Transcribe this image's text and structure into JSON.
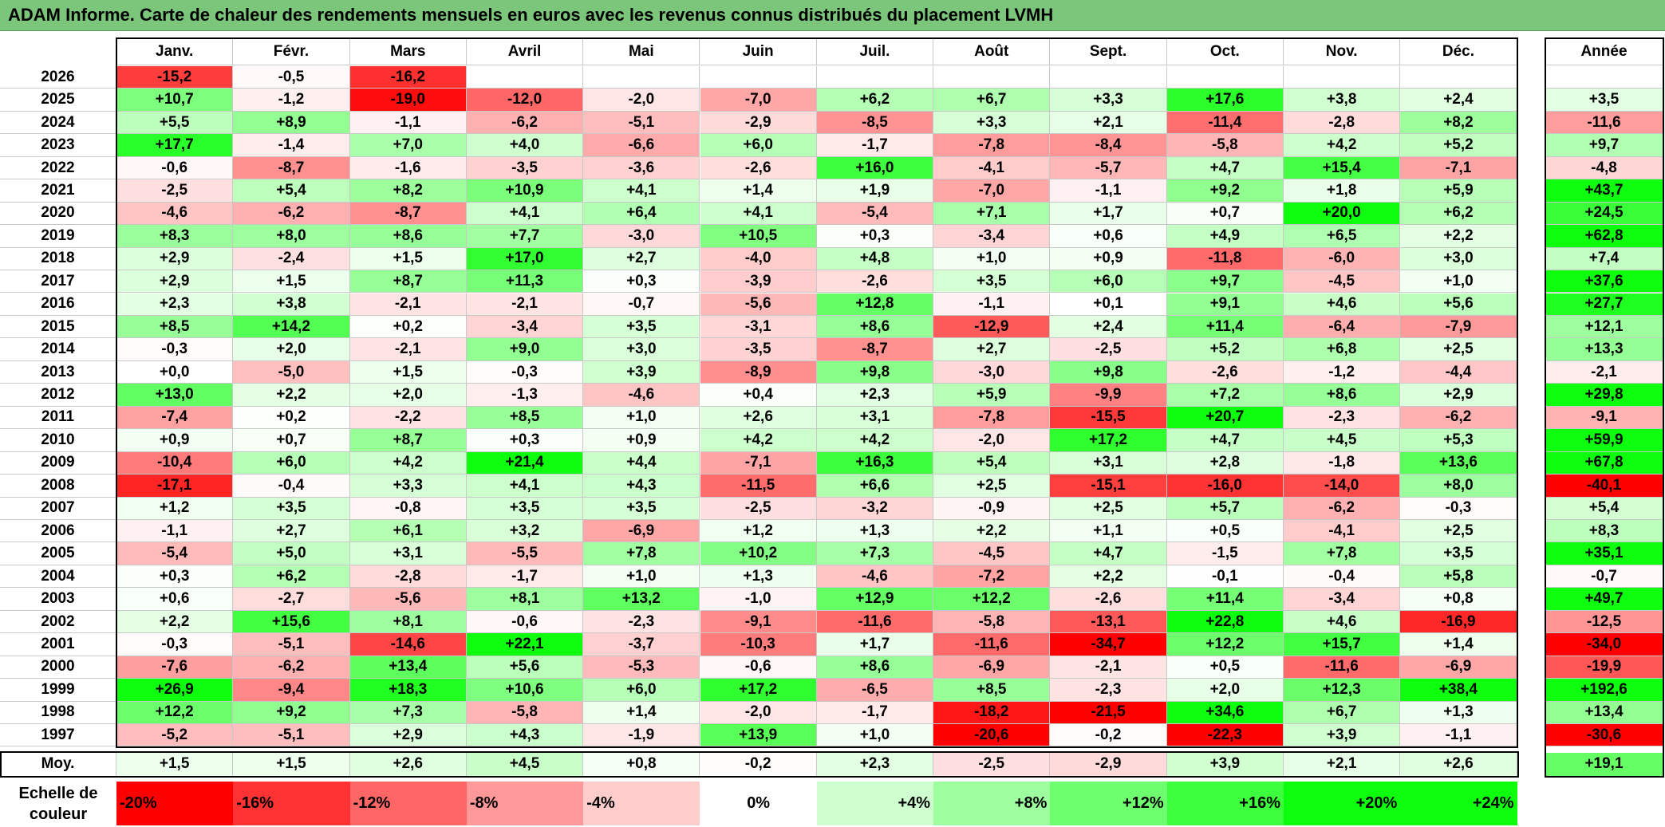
{
  "title": "ADAM Informe. Carte de chaleur des rendements mensuels en euros avec les revenus connus distribués du placement LVMH",
  "chart_data": {
    "type": "heatmap",
    "months": [
      "Janv.",
      "Févr.",
      "Mars",
      "Avril",
      "Mai",
      "Juin",
      "Juil.",
      "Août",
      "Sept.",
      "Oct.",
      "Nov.",
      "Déc."
    ],
    "annual_header": "Année",
    "rows": [
      {
        "year": "2026",
        "values": [
          "-15,2",
          "-0,5",
          "-16,2",
          "",
          "",
          "",
          "",
          "",
          "",
          "",
          "",
          ""
        ],
        "annual": ""
      },
      {
        "year": "2025",
        "values": [
          "+10,7",
          "-1,2",
          "-19,0",
          "-12,0",
          "-2,0",
          "-7,0",
          "+6,2",
          "+6,7",
          "+3,3",
          "+17,6",
          "+3,8",
          "+2,4"
        ],
        "annual": "+3,5"
      },
      {
        "year": "2024",
        "values": [
          "+5,5",
          "+8,9",
          "-1,1",
          "-6,2",
          "-5,1",
          "-2,9",
          "-8,5",
          "+3,3",
          "+2,1",
          "-11,4",
          "-2,8",
          "+8,2"
        ],
        "annual": "-11,6"
      },
      {
        "year": "2023",
        "values": [
          "+17,7",
          "-1,4",
          "+7,0",
          "+4,0",
          "-6,6",
          "+6,0",
          "-1,7",
          "-7,8",
          "-8,4",
          "-5,8",
          "+4,2",
          "+5,2"
        ],
        "annual": "+9,7"
      },
      {
        "year": "2022",
        "values": [
          "-0,6",
          "-8,7",
          "-1,6",
          "-3,5",
          "-3,6",
          "-2,6",
          "+16,0",
          "-4,1",
          "-5,7",
          "+4,7",
          "+15,4",
          "-7,1"
        ],
        "annual": "-4,8"
      },
      {
        "year": "2021",
        "values": [
          "-2,5",
          "+5,4",
          "+8,2",
          "+10,9",
          "+4,1",
          "+1,4",
          "+1,9",
          "-7,0",
          "-1,1",
          "+9,2",
          "+1,8",
          "+5,9"
        ],
        "annual": "+43,7"
      },
      {
        "year": "2020",
        "values": [
          "-4,6",
          "-6,2",
          "-8,7",
          "+4,1",
          "+6,4",
          "+4,1",
          "-5,4",
          "+7,1",
          "+1,7",
          "+0,7",
          "+20,0",
          "+6,2"
        ],
        "annual": "+24,5"
      },
      {
        "year": "2019",
        "values": [
          "+8,3",
          "+8,0",
          "+8,6",
          "+7,7",
          "-3,0",
          "+10,5",
          "+0,3",
          "-3,4",
          "+0,6",
          "+4,9",
          "+6,5",
          "+2,2"
        ],
        "annual": "+62,8"
      },
      {
        "year": "2018",
        "values": [
          "+2,9",
          "-2,4",
          "+1,5",
          "+17,0",
          "+2,7",
          "-4,0",
          "+4,8",
          "+1,0",
          "+0,9",
          "-11,8",
          "-6,0",
          "+3,0"
        ],
        "annual": "+7,4"
      },
      {
        "year": "2017",
        "values": [
          "+2,9",
          "+1,5",
          "+8,7",
          "+11,3",
          "+0,3",
          "-3,9",
          "-2,6",
          "+3,5",
          "+6,0",
          "+9,7",
          "-4,5",
          "+1,0"
        ],
        "annual": "+37,6"
      },
      {
        "year": "2016",
        "values": [
          "+2,3",
          "+3,8",
          "-2,1",
          "-2,1",
          "-0,7",
          "-5,6",
          "+12,8",
          "-1,1",
          "+0,1",
          "+9,1",
          "+4,6",
          "+5,6"
        ],
        "annual": "+27,7"
      },
      {
        "year": "2015",
        "values": [
          "+8,5",
          "+14,2",
          "+0,2",
          "-3,4",
          "+3,5",
          "-3,1",
          "+8,6",
          "-12,9",
          "+2,4",
          "+11,4",
          "-6,4",
          "-7,9"
        ],
        "annual": "+12,1"
      },
      {
        "year": "2014",
        "values": [
          "-0,3",
          "+2,0",
          "-2,1",
          "+9,0",
          "+3,0",
          "-3,5",
          "-8,7",
          "+2,7",
          "-2,5",
          "+5,2",
          "+6,8",
          "+2,5"
        ],
        "annual": "+13,3"
      },
      {
        "year": "2013",
        "values": [
          "+0,0",
          "-5,0",
          "+1,5",
          "-0,3",
          "+3,9",
          "-8,9",
          "+9,8",
          "-3,0",
          "+9,8",
          "-2,6",
          "-1,2",
          "-4,4"
        ],
        "annual": "-2,1"
      },
      {
        "year": "2012",
        "values": [
          "+13,0",
          "+2,2",
          "+2,0",
          "-1,3",
          "-4,6",
          "+0,4",
          "+2,3",
          "+5,9",
          "-9,9",
          "+7,2",
          "+8,6",
          "+2,9"
        ],
        "annual": "+29,8"
      },
      {
        "year": "2011",
        "values": [
          "-7,4",
          "+0,2",
          "-2,2",
          "+8,5",
          "+1,0",
          "+2,6",
          "+3,1",
          "-7,8",
          "-15,5",
          "+20,7",
          "-2,3",
          "-6,2"
        ],
        "annual": "-9,1"
      },
      {
        "year": "2010",
        "values": [
          "+0,9",
          "+0,7",
          "+8,7",
          "+0,3",
          "+0,9",
          "+4,2",
          "+4,2",
          "-2,0",
          "+17,2",
          "+4,7",
          "+4,5",
          "+5,3"
        ],
        "annual": "+59,9"
      },
      {
        "year": "2009",
        "values": [
          "-10,4",
          "+6,0",
          "+4,2",
          "+21,4",
          "+4,4",
          "-7,1",
          "+16,3",
          "+5,4",
          "+3,1",
          "+2,8",
          "-1,8",
          "+13,6"
        ],
        "annual": "+67,8"
      },
      {
        "year": "2008",
        "values": [
          "-17,1",
          "-0,4",
          "+3,3",
          "+4,1",
          "+4,3",
          "-11,5",
          "+6,6",
          "+2,5",
          "-15,1",
          "-16,0",
          "-14,0",
          "+8,0"
        ],
        "annual": "-40,1"
      },
      {
        "year": "2007",
        "values": [
          "+1,2",
          "+3,5",
          "-0,8",
          "+3,5",
          "+3,5",
          "-2,5",
          "-3,2",
          "-0,9",
          "+2,5",
          "+5,7",
          "-6,2",
          "-0,3"
        ],
        "annual": "+5,4"
      },
      {
        "year": "2006",
        "values": [
          "-1,1",
          "+2,7",
          "+6,1",
          "+3,2",
          "-6,9",
          "+1,2",
          "+1,3",
          "+2,2",
          "+1,1",
          "+0,5",
          "-4,1",
          "+2,5"
        ],
        "annual": "+8,3"
      },
      {
        "year": "2005",
        "values": [
          "-5,4",
          "+5,0",
          "+3,1",
          "-5,5",
          "+7,8",
          "+10,2",
          "+7,3",
          "-4,5",
          "+4,7",
          "-1,5",
          "+7,8",
          "+3,5"
        ],
        "annual": "+35,1"
      },
      {
        "year": "2004",
        "values": [
          "+0,3",
          "+6,2",
          "-2,8",
          "-1,7",
          "+1,0",
          "+1,3",
          "-4,6",
          "-7,2",
          "+2,2",
          "-0,1",
          "-0,4",
          "+5,8"
        ],
        "annual": "-0,7"
      },
      {
        "year": "2003",
        "values": [
          "+0,6",
          "-2,7",
          "-5,6",
          "+8,1",
          "+13,2",
          "-1,0",
          "+12,9",
          "+12,2",
          "-2,6",
          "+11,4",
          "-3,4",
          "+0,8"
        ],
        "annual": "+49,7"
      },
      {
        "year": "2002",
        "values": [
          "+2,2",
          "+15,6",
          "+8,1",
          "-0,6",
          "-2,3",
          "-9,1",
          "-11,6",
          "-5,8",
          "-13,1",
          "+22,8",
          "+4,6",
          "-16,9"
        ],
        "annual": "-12,5"
      },
      {
        "year": "2001",
        "values": [
          "-0,3",
          "-5,1",
          "-14,6",
          "+22,1",
          "-3,7",
          "-10,3",
          "+1,7",
          "-11,6",
          "-34,7",
          "+12,2",
          "+15,7",
          "+1,4"
        ],
        "annual": "-34,0"
      },
      {
        "year": "2000",
        "values": [
          "-7,6",
          "-6,2",
          "+13,4",
          "+5,6",
          "-5,3",
          "-0,6",
          "+8,6",
          "-6,9",
          "-2,1",
          "+0,5",
          "-11,6",
          "-6,9"
        ],
        "annual": "-19,9"
      },
      {
        "year": "1999",
        "values": [
          "+26,9",
          "-9,4",
          "+18,3",
          "+10,6",
          "+6,0",
          "+17,2",
          "-6,5",
          "+8,5",
          "-2,3",
          "+2,0",
          "+12,3",
          "+38,4"
        ],
        "annual": "+192,6"
      },
      {
        "year": "1998",
        "values": [
          "+12,2",
          "+9,2",
          "+7,3",
          "-5,8",
          "+1,4",
          "-2,0",
          "-1,7",
          "-18,2",
          "-21,5",
          "+34,6",
          "+6,7",
          "+1,3"
        ],
        "annual": "+13,4"
      },
      {
        "year": "1997",
        "values": [
          "-5,2",
          "-5,1",
          "+2,9",
          "+4,3",
          "-1,9",
          "+13,9",
          "+1,0",
          "-20,6",
          "-0,2",
          "-22,3",
          "+3,9",
          "-1,1"
        ],
        "annual": "-30,6"
      }
    ],
    "average": {
      "label": "Moy.",
      "values": [
        "+1,5",
        "+1,5",
        "+2,6",
        "+4,5",
        "+0,8",
        "-0,2",
        "+2,3",
        "-2,5",
        "-2,9",
        "+3,9",
        "+2,1",
        "+2,6"
      ],
      "annual": "+19,1"
    },
    "scale": {
      "label_line1": "Echelle de",
      "label_line2": "couleur",
      "steps": [
        "-20%",
        "-16%",
        "-12%",
        "-8%",
        "-4%",
        "0%",
        "+4%",
        "+8%",
        "+12%",
        "+16%",
        "+20%",
        "+24%"
      ]
    }
  }
}
